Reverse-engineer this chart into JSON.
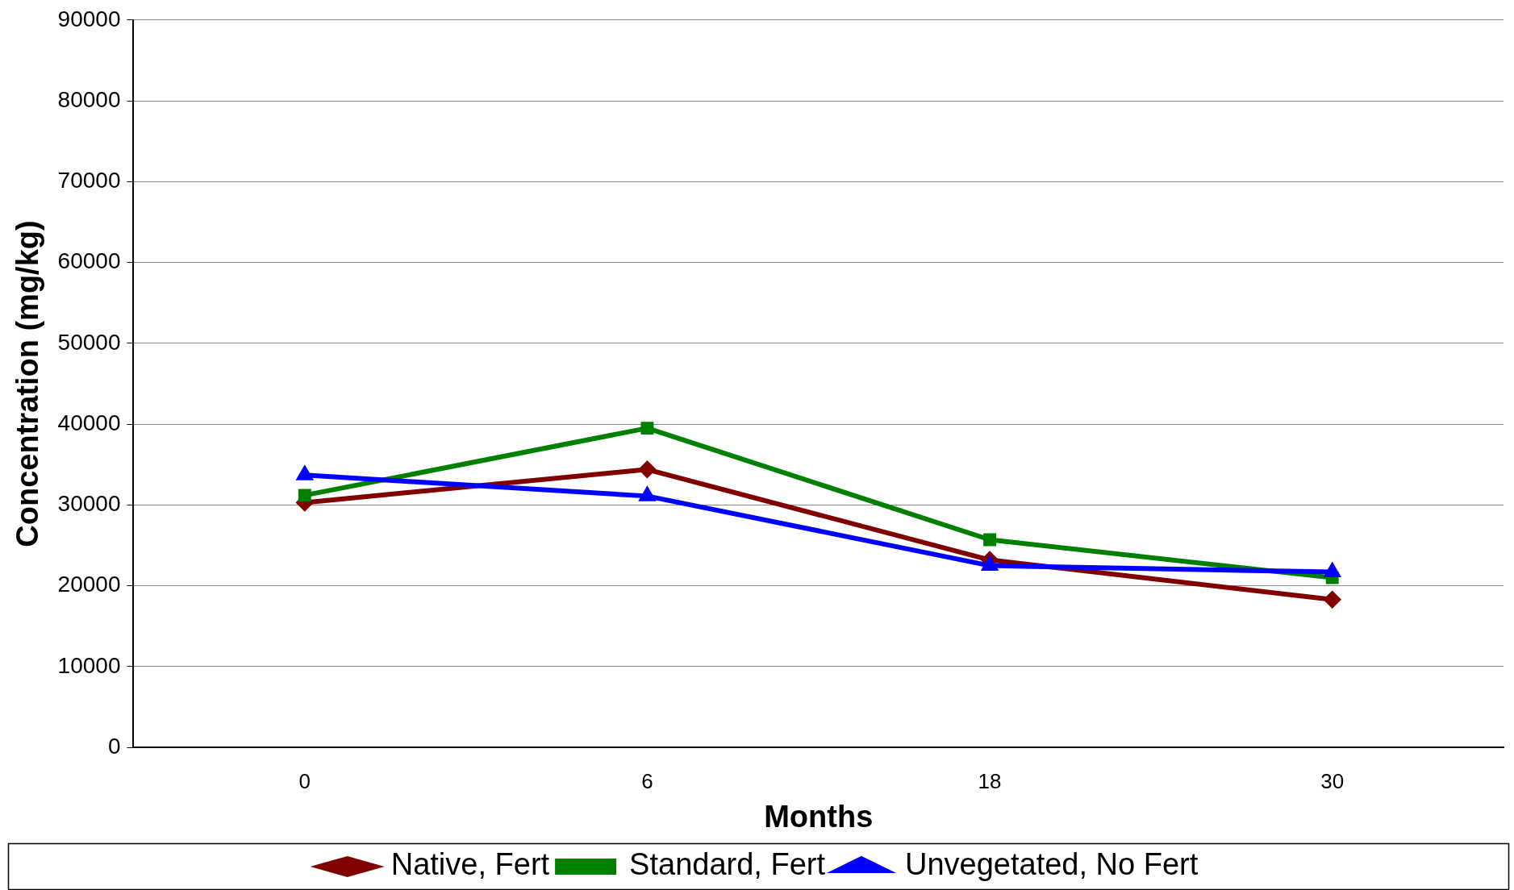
{
  "chart_data": {
    "type": "line",
    "xlabel": "Months",
    "ylabel": "Concentration (mg/kg)",
    "categories": [
      "0",
      "6",
      "18",
      "30"
    ],
    "ylim": [
      0,
      90000
    ],
    "yticks": [
      0,
      10000,
      20000,
      30000,
      40000,
      50000,
      60000,
      70000,
      80000,
      90000
    ],
    "grid": "y",
    "legend": "bottom",
    "line_style": "solid",
    "series": [
      {
        "name": "Native, Fert",
        "color": "#800000",
        "marker": "diamond",
        "values": [
          30300,
          34400,
          23200,
          18300
        ]
      },
      {
        "name": "Standard, Fert",
        "color": "#008000",
        "marker": "square",
        "values": [
          31200,
          39500,
          25700,
          21000
        ]
      },
      {
        "name": "Unvegetated, No Fert",
        "color": "#0000ff",
        "marker": "triangle",
        "values": [
          33700,
          31100,
          22500,
          21700
        ]
      }
    ]
  }
}
